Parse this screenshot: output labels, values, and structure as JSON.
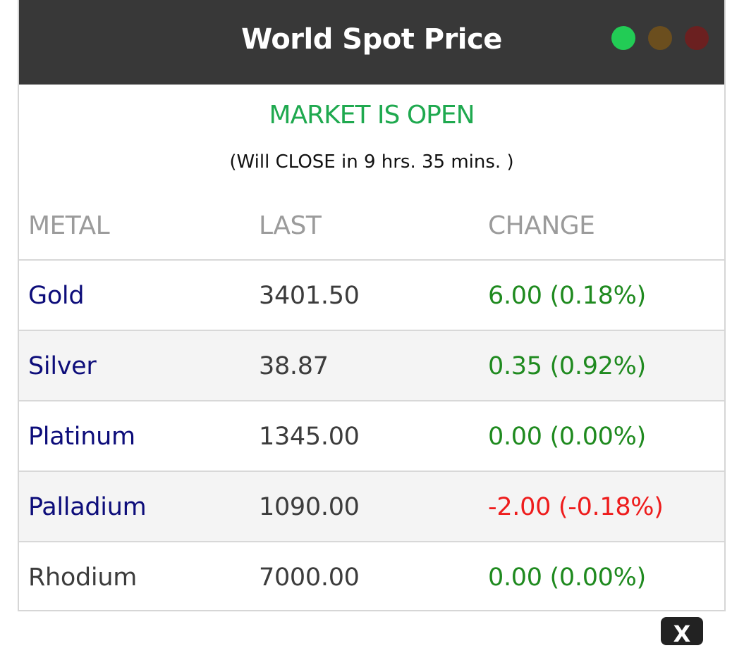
{
  "widget": {
    "title": "World Spot Price",
    "indicators": [
      {
        "name": "green-light",
        "color": "#22cc55"
      },
      {
        "name": "amber-light",
        "color": "#6b4e1e"
      },
      {
        "name": "red-light",
        "color": "#6b2020"
      }
    ]
  },
  "market": {
    "status": "MARKET IS OPEN",
    "countdown": "(Will CLOSE in 9 hrs. 35 mins. )"
  },
  "table": {
    "headers": {
      "metal": "METAL",
      "last": "LAST",
      "change": "CHANGE"
    },
    "rows": [
      {
        "metal": "Gold",
        "last": "3401.50",
        "change": "6.00 (0.18%)",
        "metal_color": "#0d0d7a",
        "change_color": "#1f8a1f"
      },
      {
        "metal": "Silver",
        "last": "38.87",
        "change": "0.35 (0.92%)",
        "metal_color": "#0d0d7a",
        "change_color": "#1f8a1f"
      },
      {
        "metal": "Platinum",
        "last": "1345.00",
        "change": "0.00 (0.00%)",
        "metal_color": "#0d0d7a",
        "change_color": "#1f8a1f"
      },
      {
        "metal": "Palladium",
        "last": "1090.00",
        "change": "-2.00 (-0.18%)",
        "metal_color": "#0d0d7a",
        "change_color": "#ee1c1c"
      },
      {
        "metal": "Rhodium",
        "last": "7000.00",
        "change": "0.00 (0.00%)",
        "metal_color": "#3c3c3c",
        "change_color": "#1f8a1f"
      }
    ]
  },
  "close_button": {
    "label": "X"
  }
}
